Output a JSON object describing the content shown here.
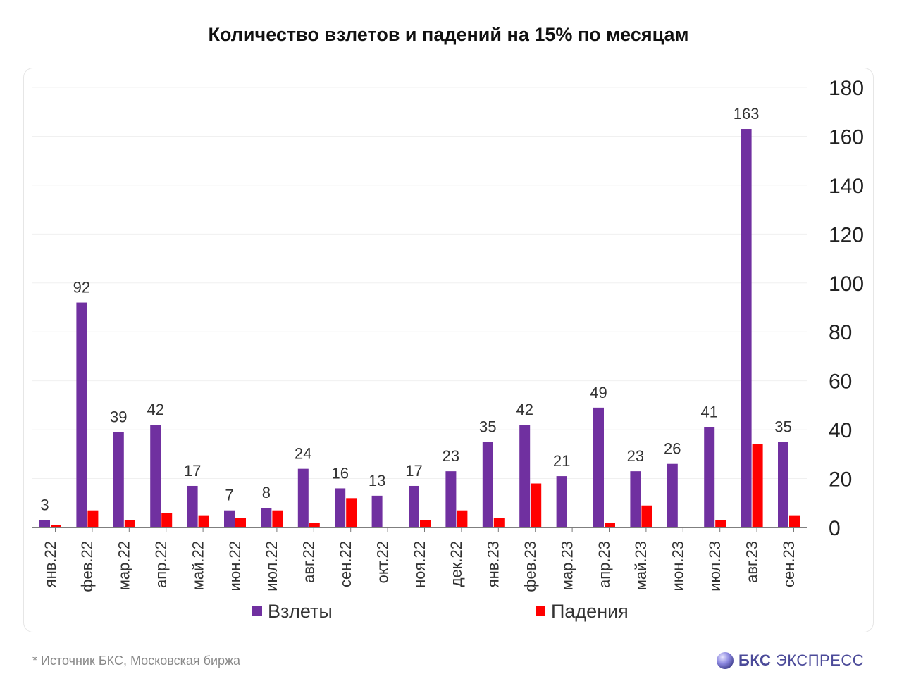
{
  "chart_data": {
    "type": "bar",
    "title": "Количество взлетов и падений на 15% по месяцам",
    "categories": [
      "янв.22",
      "фев.22",
      "мар.22",
      "апр.22",
      "май.22",
      "июн.22",
      "июл.22",
      "авг.22",
      "сен.22",
      "окт.22",
      "ноя.22",
      "дек.22",
      "янв.23",
      "фев.23",
      "мар.23",
      "апр.23",
      "май.23",
      "июн.23",
      "июл.23",
      "авг.23",
      "сен.23"
    ],
    "series": [
      {
        "name": "Взлеты",
        "color": "#7030a0",
        "values": [
          3,
          92,
          39,
          42,
          17,
          7,
          8,
          24,
          16,
          13,
          17,
          23,
          35,
          42,
          21,
          49,
          23,
          26,
          41,
          163,
          35
        ],
        "show_labels": true
      },
      {
        "name": "Падения",
        "color": "#ff0000",
        "values": [
          1,
          7,
          3,
          6,
          5,
          4,
          7,
          2,
          12,
          0,
          3,
          7,
          4,
          18,
          0,
          2,
          9,
          0,
          3,
          34,
          5
        ],
        "show_labels": false
      }
    ],
    "y_axis": {
      "position": "right",
      "ylim": [
        0,
        180
      ],
      "ticks": [
        0,
        20,
        40,
        60,
        80,
        100,
        120,
        140,
        160,
        180
      ]
    },
    "xlabel": "",
    "ylabel": "",
    "grid": true,
    "legend_position": "bottom"
  },
  "footnote": "*  Источник БКС, Московская биржа",
  "brand": {
    "bold": "БКС",
    "rest": " ЭКСПРЕСС"
  }
}
